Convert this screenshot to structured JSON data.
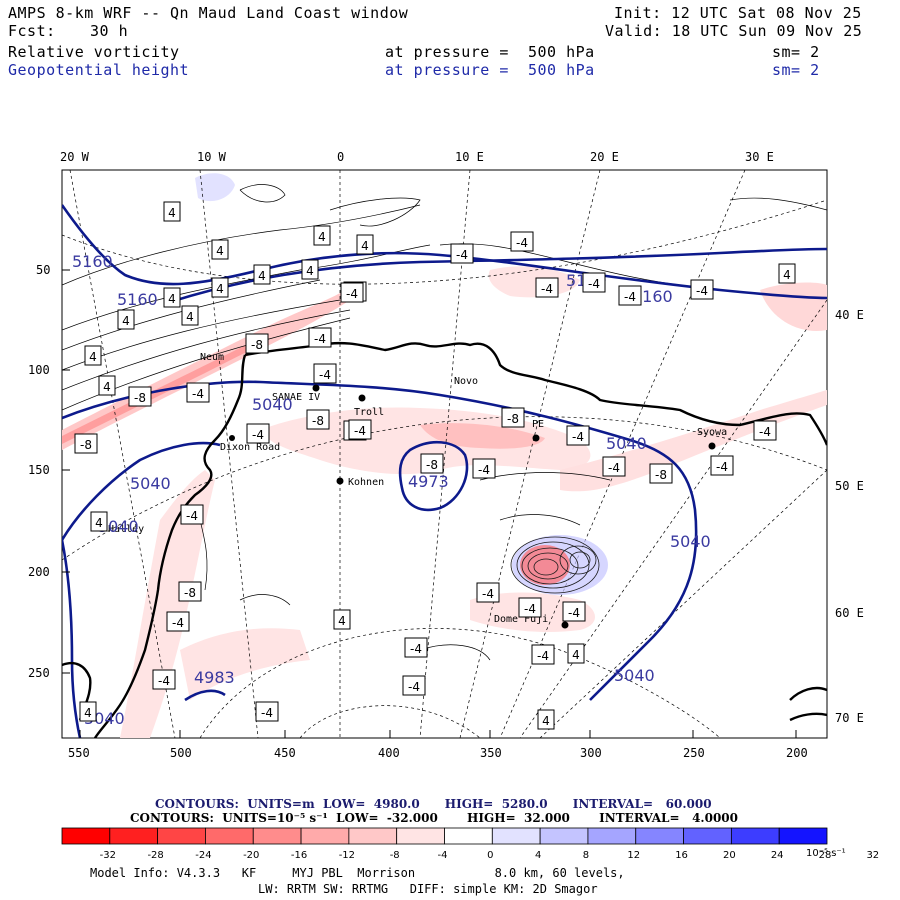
{
  "header": {
    "title": "AMPS 8-km WRF -- Qn Maud Land Coast window",
    "fcst_label": "Fcst:",
    "fcst_value": "30 h",
    "init": "Init: 12 UTC Sat 08 Nov 25",
    "valid": "Valid: 18 UTC Sun 09 Nov 25",
    "field1": {
      "name": "Relative vorticity",
      "level": "at pressure =  500 hPa",
      "sm": "sm= 2"
    },
    "field2": {
      "name": "Geopotential height",
      "level": "at pressure =  500 hPa",
      "sm": "sm= 2"
    }
  },
  "axes": {
    "top_lon": [
      "20 W",
      "10 W",
      "0",
      "10 E",
      "20 E",
      "30 E"
    ],
    "right_lon": [
      "40 E",
      "50 E",
      "60 E",
      "70 E"
    ],
    "left_y": [
      "50",
      "100",
      "150",
      "200",
      "250"
    ],
    "bottom_x": [
      "550",
      "500",
      "450",
      "400",
      "350",
      "300",
      "250",
      "200"
    ]
  },
  "places": [
    "Neum",
    "SANAE IV",
    "Troll",
    "Novo",
    "PE",
    "Syowa",
    "Kohnen",
    "Dome Fuji",
    "Halley",
    "Dixon Road"
  ],
  "height_labels": [
    "5160",
    "5160",
    "5160",
    "5160",
    "5040",
    "5040",
    "5040",
    "5040",
    "5040",
    "4973",
    "4983",
    "5040"
  ],
  "vort_labels": [
    "4",
    "-4",
    "-8"
  ],
  "contours_info": {
    "line1": "CONTOURS:  UNITS=m  LOW=  4980.0      HIGH=  5280.0      INTERVAL=   60.000",
    "line2": "CONTOURS:  UNITS=10⁻⁵ s⁻¹  LOW=  -32.000       HIGH=  32.000       INTERVAL=   4.0000"
  },
  "colorbar": {
    "ticks": [
      "-32",
      "-28",
      "-24",
      "-20",
      "-16",
      "-12",
      "-8",
      "-4",
      "0",
      "4",
      "8",
      "12",
      "16",
      "20",
      "24",
      "28",
      "32"
    ],
    "units": "10⁻⁵ s⁻¹",
    "colors": [
      "#ff0000",
      "#ff2020",
      "#ff4545",
      "#ff6a6a",
      "#ff8c8c",
      "#ffaaaa",
      "#ffc8c8",
      "#ffe4e4",
      "#ffffff",
      "#ffffff",
      "#e2e2ff",
      "#c4c4ff",
      "#a5a5ff",
      "#8585ff",
      "#6262ff",
      "#3d3dff",
      "#1414ff"
    ]
  },
  "footer": {
    "model_info": "Model Info: V4.3.3   KF     MYJ PBL  Morrison           8.0 km, 60 levels,",
    "physics": "LW: RRTM SW: RRTMG   DIFF: simple KM: 2D Smagor"
  },
  "colors": {
    "height_contour": "#0d1a8c",
    "coast": "#000000",
    "grid": "#000000"
  }
}
